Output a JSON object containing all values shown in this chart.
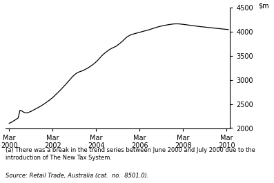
{
  "title": "",
  "ylim": [
    2000,
    4500
  ],
  "yticks": [
    2000,
    2500,
    3000,
    3500,
    4000,
    4500
  ],
  "xtick_positions": [
    0,
    24,
    48,
    72,
    96,
    120
  ],
  "xtick_labels_line1": [
    "Mar",
    "Mar",
    "Mar",
    "Mar",
    "Mar",
    "Mar"
  ],
  "xtick_labels_line2": [
    "2000",
    "2002",
    "2004",
    "2006",
    "2008",
    "2010"
  ],
  "line_color": "#000000",
  "line_width": 0.9,
  "background_color": "#ffffff",
  "footnote": "(a) There was a break in the trend series between June 2000 and July 2000 due to the\nintroduction of The New Tax System.",
  "source": "Source: Retail Trade, Australia (cat.  no.  8501.0).",
  "footnote_fontsize": 6.0,
  "source_fontsize": 6.0,
  "values": [
    2100,
    2115,
    2140,
    2160,
    2185,
    2210,
    2370,
    2355,
    2330,
    2315,
    2315,
    2330,
    2345,
    2365,
    2385,
    2405,
    2425,
    2445,
    2468,
    2492,
    2518,
    2545,
    2572,
    2600,
    2630,
    2665,
    2702,
    2738,
    2775,
    2815,
    2855,
    2895,
    2938,
    2980,
    3022,
    3065,
    3100,
    3130,
    3152,
    3168,
    3180,
    3196,
    3215,
    3235,
    3257,
    3282,
    3308,
    3338,
    3370,
    3408,
    3448,
    3490,
    3528,
    3558,
    3588,
    3615,
    3638,
    3658,
    3675,
    3693,
    3720,
    3750,
    3782,
    3815,
    3852,
    3885,
    3908,
    3928,
    3942,
    3952,
    3962,
    3972,
    3982,
    3993,
    4003,
    4013,
    4023,
    4033,
    4045,
    4058,
    4070,
    4082,
    4093,
    4103,
    4112,
    4120,
    4128,
    4135,
    4141,
    4147,
    4152,
    4156,
    4158,
    4158,
    4156,
    4152,
    4148,
    4143,
    4138,
    4133,
    4128,
    4123,
    4118,
    4113,
    4108,
    4103,
    4099,
    4095,
    4091,
    4087,
    4083,
    4079,
    4075,
    4071,
    4067,
    4063,
    4059,
    4055,
    4051,
    4047,
    4043,
    4040
  ]
}
